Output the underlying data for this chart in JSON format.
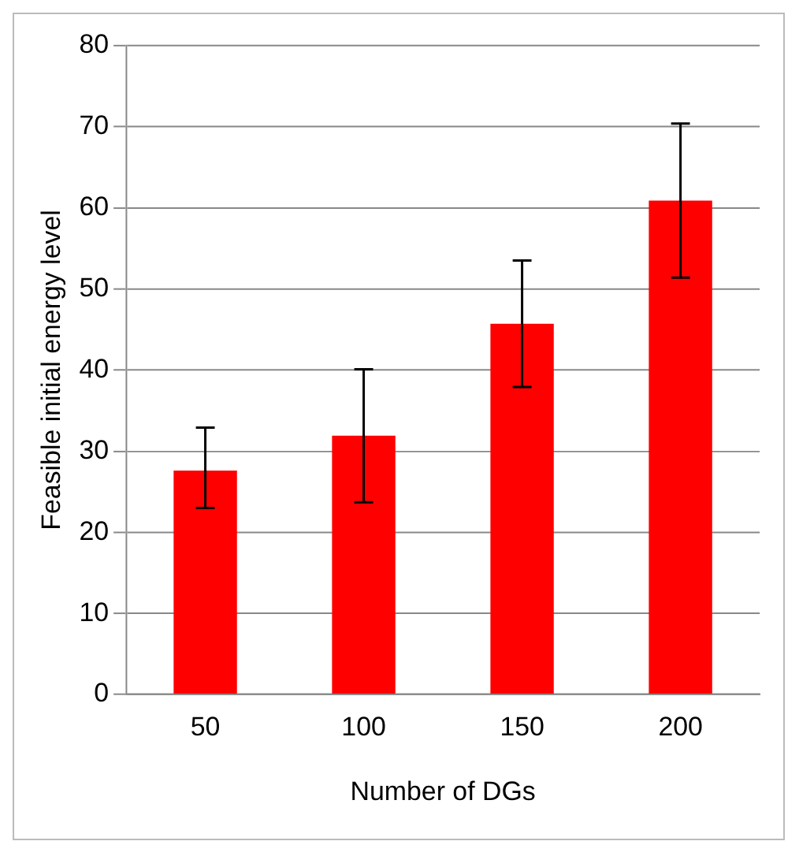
{
  "chart_data": {
    "type": "bar",
    "xlabel": "Number of DGs",
    "ylabel": "Feasible initial energy level",
    "categories": [
      "50",
      "100",
      "150",
      "200"
    ],
    "values": [
      27.6,
      31.9,
      45.7,
      60.9
    ],
    "errors": [
      [
        23.0,
        32.9
      ],
      [
        23.7,
        40.1
      ],
      [
        37.9,
        53.5
      ],
      [
        51.4,
        70.4
      ]
    ],
    "color": "#ff0000",
    "ylim": [
      0,
      80
    ],
    "yticks": [
      0,
      10,
      20,
      30,
      40,
      50,
      60,
      70,
      80
    ],
    "grid": "y",
    "legend": false
  }
}
